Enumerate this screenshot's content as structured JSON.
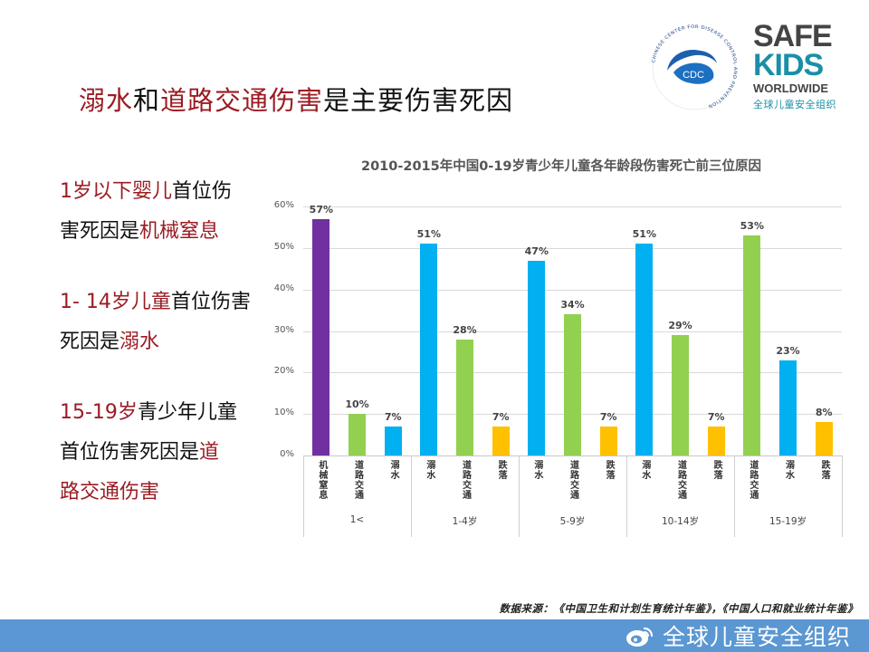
{
  "slide": {
    "title_parts": [
      {
        "text": "溺水",
        "highlight": true
      },
      {
        "text": "和",
        "highlight": false
      },
      {
        "text": "道路交通伤害",
        "highlight": true
      },
      {
        "text": "是主要伤害死因",
        "highlight": false
      }
    ],
    "colors": {
      "highlight": "#9b1c24",
      "text": "#111111",
      "footer_band": "#5b97d2"
    }
  },
  "logos": {
    "cdc": {
      "center_text": "CDC",
      "ring_text": "CHINESE CENTER FOR DISEASE CONTROL AND PREVENTION"
    },
    "safekids": {
      "line1": "SAFE",
      "line2": "KIDS",
      "line3": "WORLDWIDE",
      "line4": "全球儿童安全组织"
    }
  },
  "notes": [
    {
      "lines": [
        [
          {
            "text": "1岁以下婴儿",
            "highlight": true
          },
          {
            "text": "首位伤",
            "highlight": false
          }
        ],
        [
          {
            "text": "害死因是",
            "highlight": false
          },
          {
            "text": "机械窒息",
            "highlight": true
          }
        ]
      ]
    },
    {
      "lines": [
        [
          {
            "text": "1- 14岁儿童",
            "highlight": true
          },
          {
            "text": "首位伤害",
            "highlight": false
          }
        ],
        [
          {
            "text": "死因是",
            "highlight": false
          },
          {
            "text": "溺水",
            "highlight": true
          }
        ]
      ]
    },
    {
      "lines": [
        [
          {
            "text": "15-19岁",
            "highlight": true
          },
          {
            "text": "青少年儿童",
            "highlight": false
          }
        ],
        [
          {
            "text": "首位伤害死因是",
            "highlight": false
          },
          {
            "text": "道",
            "highlight": true
          }
        ],
        [
          {
            "text": "路交通伤害",
            "highlight": true
          }
        ]
      ]
    }
  ],
  "chart_data": {
    "type": "bar",
    "title": "2010-2015年中国0-19岁青少年儿童各年龄段伤害死亡前三位原因",
    "xlabel": "",
    "ylabel": "",
    "ylim": [
      0,
      60
    ],
    "yticks": [
      "0%",
      "10%",
      "20%",
      "30%",
      "40%",
      "50%",
      "60%"
    ],
    "grid": true,
    "legend": null,
    "cause_colors": {
      "机械窒息": "#7030a0",
      "道路交通": "#92d050",
      "溺水": "#00b0f0",
      "跌落": "#ffc000"
    },
    "groups": [
      {
        "label": "1<",
        "bars": [
          {
            "cause": "机械窒息",
            "value": 57,
            "label": "57%"
          },
          {
            "cause": "道路交通",
            "value": 10,
            "label": "10%"
          },
          {
            "cause": "溺水",
            "value": 7,
            "label": "7%"
          }
        ]
      },
      {
        "label": "1-4岁",
        "bars": [
          {
            "cause": "溺水",
            "value": 51,
            "label": "51%"
          },
          {
            "cause": "道路交通",
            "value": 28,
            "label": "28%"
          },
          {
            "cause": "跌落",
            "value": 7,
            "label": "7%"
          }
        ]
      },
      {
        "label": "5-9岁",
        "bars": [
          {
            "cause": "溺水",
            "value": 47,
            "label": "47%"
          },
          {
            "cause": "道路交通",
            "value": 34,
            "label": "34%"
          },
          {
            "cause": "跌落",
            "value": 7,
            "label": "7%"
          }
        ]
      },
      {
        "label": "10-14岁",
        "bars": [
          {
            "cause": "溺水",
            "value": 51,
            "label": "51%"
          },
          {
            "cause": "道路交通",
            "value": 29,
            "label": "29%"
          },
          {
            "cause": "跌落",
            "value": 7,
            "label": "7%"
          }
        ]
      },
      {
        "label": "15-19岁",
        "bars": [
          {
            "cause": "道路交通",
            "value": 53,
            "label": "53%"
          },
          {
            "cause": "溺水",
            "value": 23,
            "label": "23%"
          },
          {
            "cause": "跌落",
            "value": 8,
            "label": "8%"
          }
        ]
      }
    ]
  },
  "footer": {
    "source": "数据来源：《中国卫生和计划生育统计年鉴》，《中国人口和就业统计年鉴》",
    "watermark": "全球儿童安全组织",
    "watermark_icon": "weibo-icon"
  }
}
